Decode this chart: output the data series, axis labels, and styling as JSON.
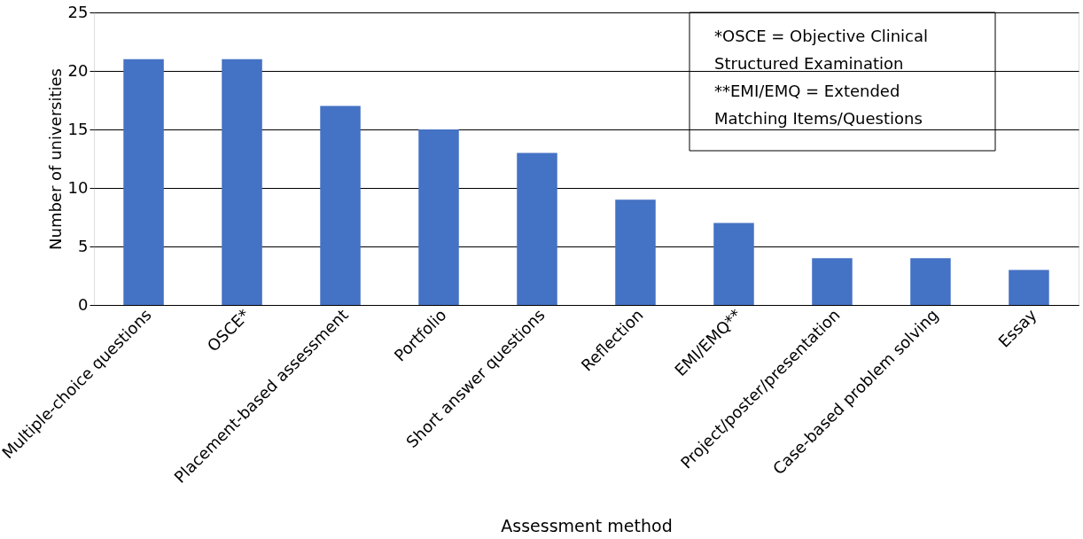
{
  "chart_data": {
    "type": "bar",
    "xlabel": "Assessment method",
    "ylabel": "Number of universities",
    "categories": [
      "Multiple-choice questions",
      "OSCE*",
      "Placement-based assessment",
      "Portfolio",
      "Short answer questions",
      "Reflection",
      "EMI/EMQ**",
      "Project/poster/presentation",
      "Case-based problem solving",
      "Essay"
    ],
    "values": [
      21,
      21,
      17,
      15,
      13,
      9,
      7,
      4,
      4,
      3
    ],
    "color": "#4472c4",
    "ylim": [
      0,
      25
    ],
    "yticks": [
      0,
      5,
      10,
      15,
      20,
      25
    ],
    "grid": "y",
    "annotations": [
      "*OSCE = Objective Clinical Structured Examination",
      "**EMI/EMQ = Extended Matching Items/Questions"
    ]
  }
}
